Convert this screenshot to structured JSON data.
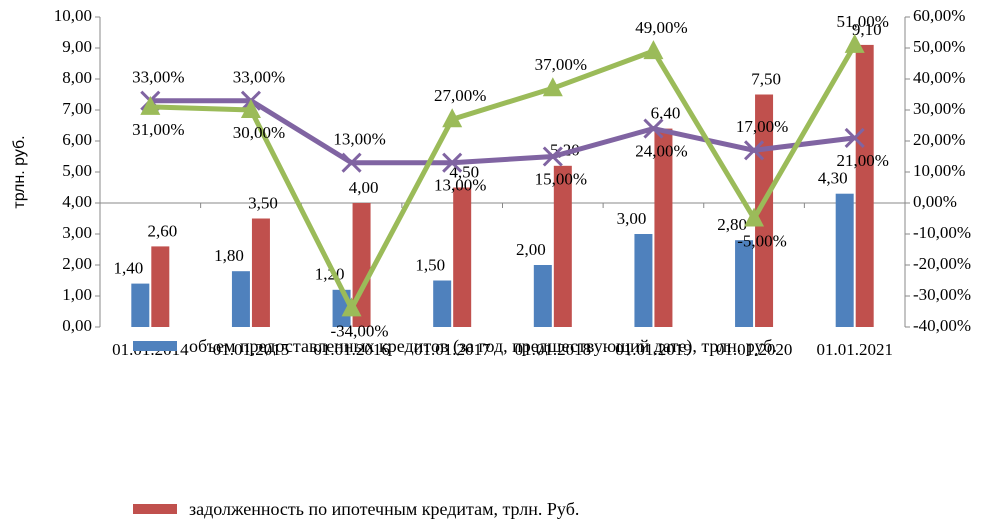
{
  "chart_data": {
    "type": "bar-line",
    "y_label": "трлн. руб.",
    "categories": [
      "01.01.2014",
      "01.01.2015",
      "01.01.2016",
      "01.01.2017",
      "01.01.2018",
      "01.01.2019",
      "01.01.2020",
      "01.01.2021"
    ],
    "ylim": [
      0,
      10
    ],
    "yticks": [
      {
        "value": 0,
        "label": "0,00"
      },
      {
        "value": 1,
        "label": "1,00"
      },
      {
        "value": 2,
        "label": "2,00"
      },
      {
        "value": 3,
        "label": "3,00"
      },
      {
        "value": 4,
        "label": "4,00"
      },
      {
        "value": 5,
        "label": "5,00"
      },
      {
        "value": 6,
        "label": "6,00"
      },
      {
        "value": 7,
        "label": "7,00"
      },
      {
        "value": 8,
        "label": "8,00"
      },
      {
        "value": 9,
        "label": "9,00"
      },
      {
        "value": 10,
        "label": "10,00"
      }
    ],
    "y2lim": [
      -40,
      60
    ],
    "y2ticks": [
      {
        "value": -40,
        "label": "-40,00%"
      },
      {
        "value": -30,
        "label": "-30,00%"
      },
      {
        "value": -20,
        "label": "-20,00%"
      },
      {
        "value": -10,
        "label": "-10,00%"
      },
      {
        "value": 0,
        "label": "0,00%"
      },
      {
        "value": 10,
        "label": "10,00%"
      },
      {
        "value": 20,
        "label": "20,00%"
      },
      {
        "value": 30,
        "label": "30,00%"
      },
      {
        "value": 40,
        "label": "40,00%"
      },
      {
        "value": 50,
        "label": "50,00%"
      },
      {
        "value": 60,
        "label": "60,00%"
      }
    ],
    "series": [
      {
        "name": "объем предоставленных кредитов (за год, предшествующий дате), трлн. руб.",
        "type": "bar",
        "color": "#4f81bd",
        "values": [
          1.4,
          1.8,
          1.2,
          1.5,
          2.0,
          3.0,
          2.8,
          4.3
        ],
        "value_labels": [
          "1,40",
          "1,80",
          "1,20",
          "1,50",
          "2,00",
          "3,00",
          "2,80",
          "4,30"
        ]
      },
      {
        "name": "задолженность по ипотечным кредитам, трлн. Руб.",
        "type": "bar",
        "color": "#c0504d",
        "values": [
          2.6,
          3.5,
          4.0,
          4.5,
          5.2,
          6.4,
          7.5,
          9.1
        ],
        "value_labels": [
          "2,60",
          "3,50",
          "4,00",
          "4,50",
          "5,20",
          "6,40",
          "7,50",
          "9,10"
        ]
      },
      {
        "type": "line",
        "axis": "y2",
        "marker": "x",
        "color": "#8064a2",
        "values": [
          33,
          33,
          13,
          13,
          15,
          24,
          17,
          21
        ],
        "value_labels": [
          "33,00%",
          "33,00%",
          "13,00%",
          "13,00%",
          "15,00%",
          "24,00%",
          "17,00%",
          "21,00%"
        ]
      },
      {
        "type": "line",
        "axis": "y2",
        "marker": "triangle",
        "color": "#9bbb59",
        "values": [
          31,
          30,
          -34,
          27,
          37,
          49,
          -5,
          51
        ],
        "value_labels": [
          "31,00%",
          "30,00%",
          "-34,00%",
          "27,00%",
          "37,00%",
          "49,00%",
          "-5,00%",
          "51,00%"
        ]
      }
    ]
  }
}
